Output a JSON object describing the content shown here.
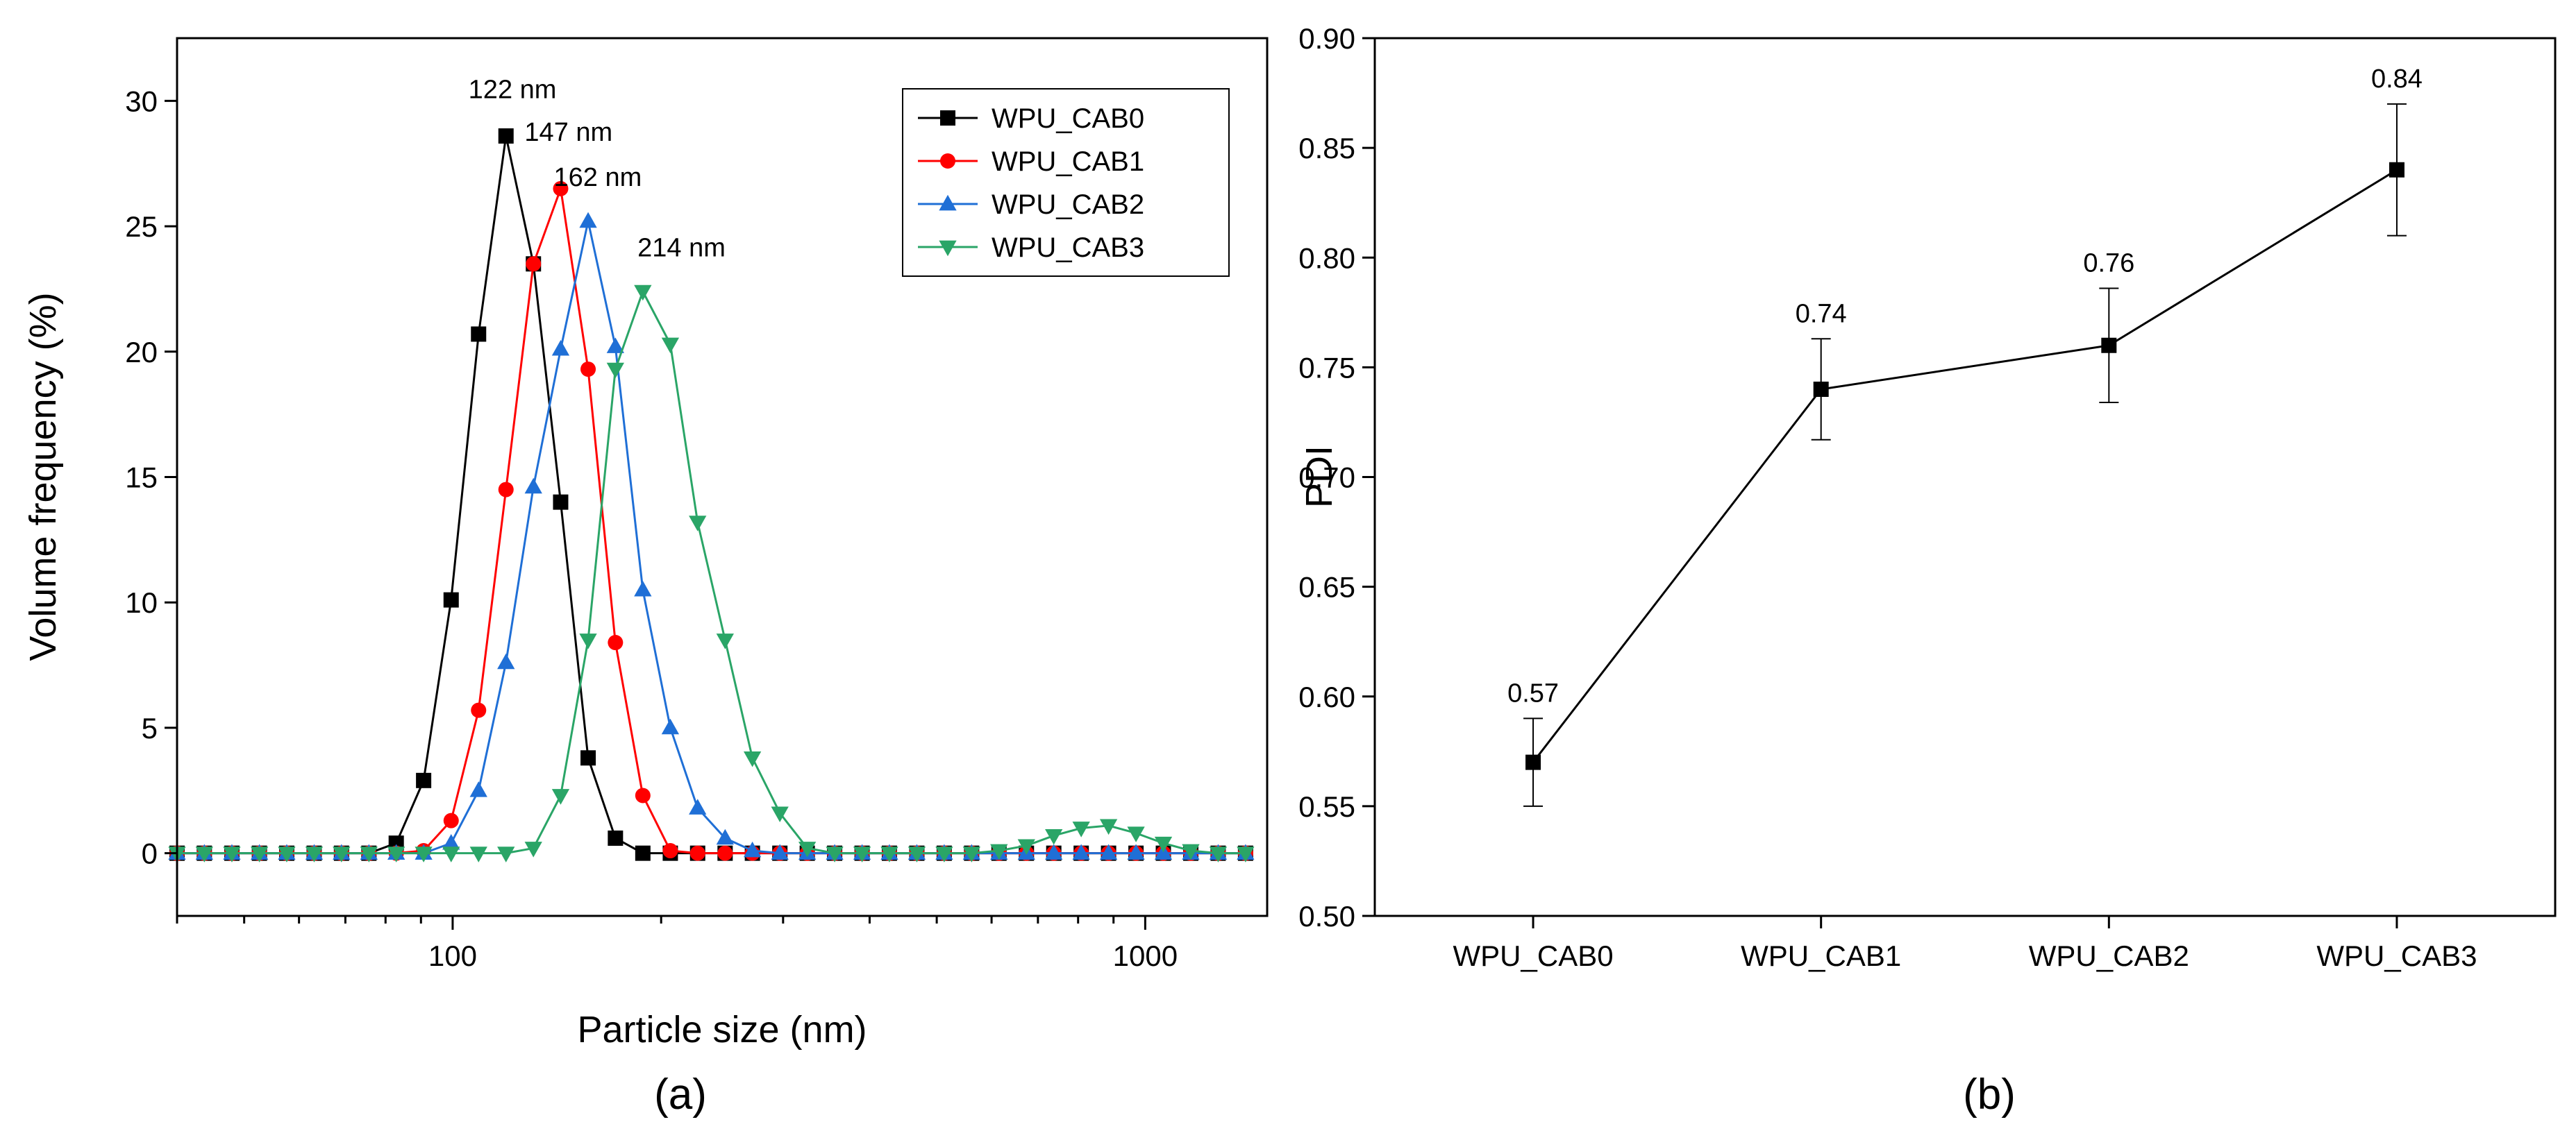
{
  "chart_data": [
    {
      "type": "line",
      "panel": "(a)",
      "xscale": "log",
      "xlabel": "Particle size (nm)",
      "ylabel": "Volume frequency (%)",
      "xlim": [
        40,
        1500
      ],
      "ylim": [
        -2.5,
        32.5
      ],
      "xticks": [
        100,
        1000
      ],
      "xtick_labels": [
        "100",
        "1000"
      ],
      "yticks": [
        0,
        5,
        10,
        15,
        20,
        25,
        30
      ],
      "ytick_labels": [
        "0",
        "5",
        "10",
        "15",
        "20",
        "25",
        "30"
      ],
      "x": [
        40,
        43.8,
        48,
        52.6,
        57.6,
        63.1,
        69.1,
        75.7,
        82.9,
        90.8,
        99.5,
        109,
        119.4,
        130.8,
        143.2,
        156.9,
        171.8,
        188.2,
        206.2,
        225.8,
        247.4,
        270.9,
        296.8,
        325.1,
        356.1,
        390.1,
        427.2,
        468,
        512.6,
        561.5,
        615,
        673.7,
        737.9,
        808.3,
        885.3,
        969.8,
        1062.2,
        1163.5,
        1274.5,
        1396
      ],
      "series": [
        {
          "name": "WPU_CAB0",
          "color": "#000000",
          "marker": "square",
          "values": [
            0,
            0,
            0,
            0,
            0,
            0,
            0,
            0,
            0.4,
            2.9,
            10.1,
            20.7,
            28.6,
            23.5,
            14.0,
            3.8,
            0.6,
            0,
            0,
            0,
            0,
            0,
            0,
            0,
            0,
            0,
            0,
            0,
            0,
            0,
            0,
            0,
            0,
            0,
            0,
            0,
            0,
            0,
            0,
            0
          ]
        },
        {
          "name": "WPU_CAB1",
          "color": "#ff0000",
          "marker": "circle",
          "values": [
            0,
            0,
            0,
            0,
            0,
            0,
            0,
            0,
            0,
            0.1,
            1.3,
            5.7,
            14.5,
            23.5,
            26.5,
            19.3,
            8.4,
            2.3,
            0.1,
            0,
            0,
            0,
            0,
            0,
            0,
            0,
            0,
            0,
            0,
            0,
            0,
            0,
            0,
            0,
            0,
            0,
            0,
            0,
            0,
            0
          ]
        },
        {
          "name": "WPU_CAB2",
          "color": "#1f6fd6",
          "marker": "triangle-up",
          "values": [
            0,
            0,
            0,
            0,
            0,
            0,
            0,
            0,
            0,
            0,
            0.4,
            2.5,
            7.6,
            14.6,
            20.1,
            25.2,
            20.2,
            10.5,
            5.0,
            1.8,
            0.6,
            0.1,
            0,
            0,
            0,
            0,
            0,
            0,
            0,
            0,
            0,
            0,
            0,
            0,
            0,
            0,
            0,
            0,
            0,
            0
          ]
        },
        {
          "name": "WPU_CAB3",
          "color": "#2aa567",
          "marker": "triangle-down",
          "values": [
            0,
            0,
            0,
            0,
            0,
            0,
            0,
            0,
            0,
            0,
            0,
            0,
            0,
            0.2,
            2.3,
            8.5,
            19.3,
            22.4,
            20.3,
            13.2,
            8.5,
            3.8,
            1.6,
            0.2,
            0,
            0,
            0,
            0,
            0,
            0,
            0.1,
            0.3,
            0.7,
            1.0,
            1.1,
            0.8,
            0.4,
            0.1,
            0,
            0
          ]
        }
      ],
      "annotations": [
        {
          "text": "122 nm",
          "x": 122,
          "y": 30.1
        },
        {
          "text": "147 nm",
          "x": 147,
          "y": 28.4
        },
        {
          "text": "162 nm",
          "x": 162,
          "y": 26.6
        },
        {
          "text": "214 nm",
          "x": 214,
          "y": 23.8
        }
      ],
      "legend_position": "top-right"
    },
    {
      "type": "line",
      "panel": "(b)",
      "xlabel": "",
      "ylabel": "PDI",
      "categories": [
        "WPU_CAB0",
        "WPU_CAB1",
        "WPU_CAB2",
        "WPU_CAB3"
      ],
      "values": [
        0.57,
        0.74,
        0.76,
        0.84
      ],
      "errors": [
        0.02,
        0.023,
        0.026,
        0.03
      ],
      "value_labels": [
        "0.57",
        "0.74",
        "0.76",
        "0.84"
      ],
      "ylim": [
        0.5,
        0.9
      ],
      "yticks": [
        0.5,
        0.55,
        0.6,
        0.65,
        0.7,
        0.75,
        0.8,
        0.85,
        0.9
      ],
      "ytick_labels": [
        "0.50",
        "0.55",
        "0.60",
        "0.65",
        "0.70",
        "0.75",
        "0.80",
        "0.85",
        "0.90"
      ],
      "color": "#000000",
      "marker": "square"
    }
  ]
}
